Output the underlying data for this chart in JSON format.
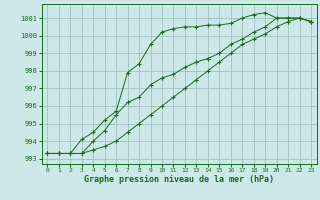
{
  "xlabel": "Graphe pression niveau de la mer (hPa)",
  "background_color": "#cce8e8",
  "grid_color": "#99bbbb",
  "line_color": "#1a6b1a",
  "xlim": [
    -0.5,
    23.5
  ],
  "ylim": [
    992.7,
    1001.8
  ],
  "yticks": [
    993,
    994,
    995,
    996,
    997,
    998,
    999,
    1000,
    1001
  ],
  "xticks": [
    0,
    1,
    2,
    3,
    4,
    5,
    6,
    7,
    8,
    9,
    10,
    11,
    12,
    13,
    14,
    15,
    16,
    17,
    18,
    19,
    20,
    21,
    22,
    23
  ],
  "line1_x": [
    0,
    1,
    2,
    3,
    4,
    5,
    6,
    7,
    8,
    9,
    10,
    11,
    12,
    13,
    14,
    15,
    16,
    17,
    18,
    19,
    20,
    21,
    22,
    23
  ],
  "line1_y": [
    993.3,
    993.3,
    993.3,
    994.1,
    994.5,
    995.2,
    995.7,
    997.9,
    998.4,
    999.5,
    1000.2,
    1000.4,
    1000.5,
    1000.5,
    1000.6,
    1000.6,
    1000.7,
    1001.0,
    1001.2,
    1001.3,
    1001.0,
    1001.0,
    1001.0,
    1000.8
  ],
  "line2_x": [
    0,
    1,
    2,
    3,
    4,
    5,
    6,
    7,
    8,
    9,
    10,
    11,
    12,
    13,
    14,
    15,
    16,
    17,
    18,
    19,
    20,
    21,
    22,
    23
  ],
  "line2_y": [
    993.3,
    993.3,
    993.3,
    993.3,
    994.0,
    994.6,
    995.5,
    996.2,
    996.5,
    997.2,
    997.6,
    997.8,
    998.2,
    998.5,
    998.7,
    999.0,
    999.5,
    999.8,
    1000.2,
    1000.5,
    1001.0,
    1001.0,
    1001.0,
    1000.8
  ],
  "line3_x": [
    0,
    1,
    2,
    3,
    4,
    5,
    6,
    7,
    8,
    9,
    10,
    11,
    12,
    13,
    14,
    15,
    16,
    17,
    18,
    19,
    20,
    21,
    22,
    23
  ],
  "line3_y": [
    993.3,
    993.3,
    993.3,
    993.3,
    993.5,
    993.7,
    994.0,
    994.5,
    995.0,
    995.5,
    996.0,
    996.5,
    997.0,
    997.5,
    998.0,
    998.5,
    999.0,
    999.5,
    999.8,
    1000.1,
    1000.5,
    1000.8,
    1001.0,
    1000.8
  ]
}
